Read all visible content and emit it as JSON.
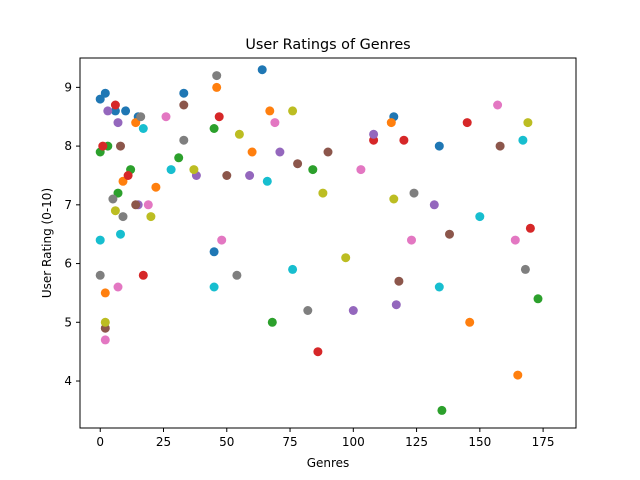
{
  "chart_data": {
    "type": "scatter",
    "title": "User Ratings of Genres",
    "xlabel": "Genres",
    "ylabel": "User Rating (0-10)",
    "xlim": [
      -8,
      188
    ],
    "ylim": [
      3.2,
      9.5
    ],
    "xticks": [
      0,
      25,
      50,
      75,
      100,
      125,
      150,
      175
    ],
    "xtick_labels": [
      "0",
      "25",
      "50",
      "75",
      "100",
      "125",
      "150",
      "175"
    ],
    "yticks": [
      4,
      5,
      6,
      7,
      8,
      9
    ],
    "ytick_labels": [
      "4",
      "5",
      "6",
      "7",
      "8",
      "9"
    ],
    "grid": false,
    "legend": "none",
    "colors": [
      "#1f77b4",
      "#ff7f0e",
      "#2ca02c",
      "#d62728",
      "#9467bd",
      "#8c564b",
      "#e377c2",
      "#7f7f7f",
      "#bcbd22",
      "#17becf"
    ],
    "series": [
      {
        "x": [
          0,
          2,
          6,
          10,
          15,
          33,
          45,
          64,
          116,
          134
        ],
        "y": [
          8.8,
          8.9,
          8.6,
          8.6,
          8.5,
          8.9,
          6.2,
          9.3,
          8.5,
          8.0
        ]
      },
      {
        "x": [
          2,
          9,
          14,
          22,
          46,
          60,
          67,
          115,
          146,
          165
        ],
        "y": [
          5.5,
          7.4,
          8.4,
          7.3,
          9.0,
          7.9,
          8.6,
          8.4,
          5.0,
          4.1
        ]
      },
      {
        "x": [
          0,
          3,
          7,
          12,
          31,
          45,
          68,
          84,
          135,
          173
        ],
        "y": [
          7.9,
          8.0,
          7.2,
          7.6,
          7.8,
          8.3,
          5.0,
          7.6,
          3.5,
          5.4
        ]
      },
      {
        "x": [
          1,
          6,
          11,
          17,
          47,
          86,
          108,
          120,
          145,
          170
        ],
        "y": [
          8.0,
          8.7,
          7.5,
          5.8,
          8.5,
          4.5,
          8.1,
          8.1,
          8.4,
          6.6
        ]
      },
      {
        "x": [
          3,
          7,
          15,
          38,
          59,
          71,
          100,
          108,
          117,
          132
        ],
        "y": [
          8.6,
          8.4,
          7.0,
          7.5,
          7.5,
          7.9,
          5.2,
          8.2,
          5.3,
          7.0
        ]
      },
      {
        "x": [
          2,
          8,
          14,
          33,
          50,
          78,
          90,
          118,
          138,
          158
        ],
        "y": [
          4.9,
          8.0,
          7.0,
          8.7,
          7.5,
          7.7,
          7.9,
          5.7,
          6.5,
          8.0
        ]
      },
      {
        "x": [
          2,
          7,
          19,
          26,
          48,
          69,
          103,
          123,
          157,
          164
        ],
        "y": [
          4.7,
          5.6,
          7.0,
          8.5,
          6.4,
          8.4,
          7.6,
          6.4,
          8.7,
          6.4
        ]
      },
      {
        "x": [
          0,
          5,
          9,
          16,
          33,
          46,
          54,
          82,
          124,
          168
        ],
        "y": [
          5.8,
          7.1,
          6.8,
          8.5,
          8.1,
          9.2,
          5.8,
          5.2,
          7.2,
          5.9
        ]
      },
      {
        "x": [
          2,
          6,
          20,
          37,
          55,
          76,
          88,
          97,
          116,
          169
        ],
        "y": [
          5.0,
          6.9,
          6.8,
          7.6,
          8.2,
          8.6,
          7.2,
          6.1,
          7.1,
          8.4
        ]
      },
      {
        "x": [
          0,
          8,
          17,
          28,
          45,
          66,
          76,
          134,
          150,
          167
        ],
        "y": [
          6.4,
          6.5,
          8.3,
          7.6,
          5.6,
          7.4,
          5.9,
          5.6,
          6.8,
          8.1
        ]
      }
    ]
  }
}
